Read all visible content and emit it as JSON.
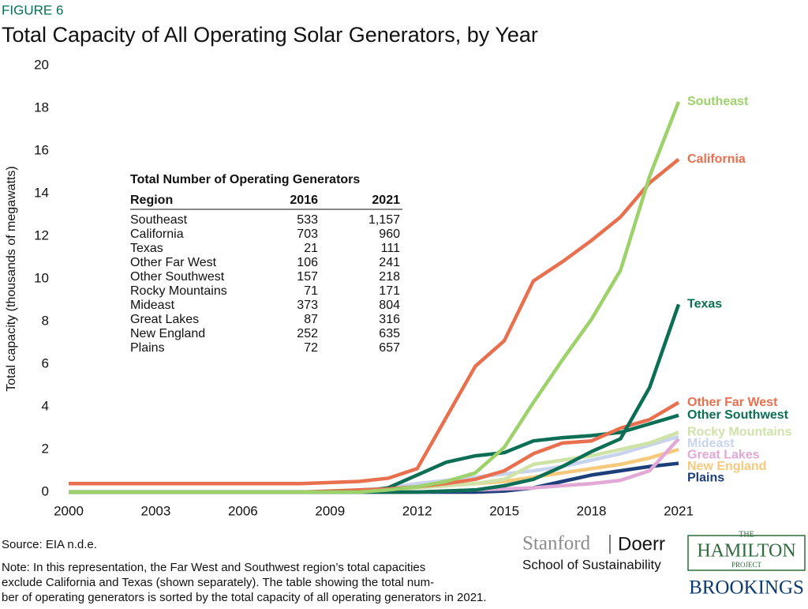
{
  "figure_label": "FIGURE 6",
  "chart_data": {
    "type": "line",
    "title": "Total Capacity of All Operating Solar Generators, by Year",
    "y_label": "Total capacity (thousands of megawatts)",
    "x": [
      2000,
      2001,
      2002,
      2003,
      2004,
      2005,
      2006,
      2007,
      2008,
      2009,
      2010,
      2011,
      2012,
      2013,
      2014,
      2015,
      2016,
      2017,
      2018,
      2019,
      2020,
      2021
    ],
    "xlim": [
      2000,
      2021
    ],
    "xticks": [
      2000,
      2003,
      2006,
      2009,
      2012,
      2015,
      2018,
      2021
    ],
    "ylim": [
      0,
      20
    ],
    "yticks": [
      0,
      2,
      4,
      6,
      8,
      10,
      12,
      14,
      16,
      18,
      20
    ],
    "grid": false,
    "series": [
      {
        "name": "Southeast",
        "color": "#9dd16a",
        "values": [
          0,
          0,
          0,
          0,
          0,
          0,
          0,
          0,
          0,
          0,
          0,
          0.1,
          0.25,
          0.5,
          0.9,
          2.1,
          4.2,
          6.2,
          8.1,
          10.4,
          14.8,
          18.3
        ]
      },
      {
        "name": "California",
        "color": "#e8704f",
        "values": [
          0.4,
          0.4,
          0.4,
          0.4,
          0.4,
          0.4,
          0.4,
          0.4,
          0.4,
          0.45,
          0.5,
          0.65,
          1.1,
          3.5,
          5.9,
          7.1,
          9.9,
          10.8,
          11.8,
          12.9,
          14.5,
          15.6
        ]
      },
      {
        "name": "Texas",
        "color": "#0b6e55",
        "values": [
          0,
          0,
          0,
          0,
          0,
          0,
          0,
          0,
          0,
          0,
          0,
          0,
          0,
          0.05,
          0.1,
          0.3,
          0.6,
          1.2,
          1.9,
          2.5,
          4.9,
          8.8
        ]
      },
      {
        "name": "Other Far West",
        "color": "#e8704f",
        "values": [
          0,
          0,
          0,
          0,
          0,
          0,
          0,
          0,
          0,
          0.05,
          0.1,
          0.15,
          0.25,
          0.4,
          0.6,
          1.0,
          1.8,
          2.3,
          2.4,
          3.0,
          3.4,
          4.2
        ]
      },
      {
        "name": "Other Southwest",
        "color": "#0b6e55",
        "values": [
          0,
          0,
          0,
          0,
          0,
          0,
          0,
          0,
          0,
          0,
          0,
          0.2,
          0.8,
          1.4,
          1.7,
          1.85,
          2.4,
          2.55,
          2.65,
          2.8,
          3.2,
          3.6
        ]
      },
      {
        "name": "Rocky Mountains",
        "color": "#cfe3a8",
        "values": [
          0,
          0,
          0,
          0,
          0,
          0,
          0,
          0,
          0,
          0,
          0,
          0.1,
          0.2,
          0.3,
          0.4,
          0.6,
          1.3,
          1.5,
          1.7,
          2.0,
          2.3,
          2.8
        ]
      },
      {
        "name": "Mideast",
        "color": "#c8d4ee",
        "values": [
          0,
          0,
          0,
          0,
          0,
          0,
          0,
          0,
          0,
          0,
          0.1,
          0.2,
          0.4,
          0.55,
          0.7,
          0.85,
          1.0,
          1.2,
          1.5,
          1.8,
          2.2,
          2.6
        ]
      },
      {
        "name": "Great Lakes",
        "color": "#e2a8d6",
        "values": [
          0,
          0,
          0,
          0,
          0,
          0,
          0,
          0,
          0,
          0,
          0,
          0,
          0,
          0.05,
          0.1,
          0.15,
          0.2,
          0.3,
          0.4,
          0.55,
          1.0,
          2.5
        ]
      },
      {
        "name": "New England",
        "color": "#f7c97a",
        "values": [
          0,
          0,
          0,
          0,
          0,
          0,
          0,
          0,
          0,
          0,
          0.05,
          0.1,
          0.2,
          0.3,
          0.4,
          0.5,
          0.7,
          0.9,
          1.1,
          1.3,
          1.6,
          2.0
        ]
      },
      {
        "name": "Plains",
        "color": "#1c3f7a",
        "values": [
          0,
          0,
          0,
          0,
          0,
          0,
          0,
          0,
          0,
          0,
          0,
          0,
          0,
          0,
          0,
          0.05,
          0.2,
          0.5,
          0.8,
          1.0,
          1.2,
          1.35
        ]
      }
    ],
    "table": {
      "title": "Total Number of Operating Generators",
      "columns": [
        "Region",
        "2016",
        "2021"
      ],
      "rows": [
        [
          "Southeast",
          533,
          "1,157"
        ],
        [
          "California",
          703,
          960
        ],
        [
          "Texas",
          21,
          111
        ],
        [
          "Other Far West",
          106,
          241
        ],
        [
          "Other Southwest",
          157,
          218
        ],
        [
          "Rocky Mountains",
          71,
          171
        ],
        [
          "Mideast",
          373,
          804
        ],
        [
          "Great Lakes",
          87,
          316
        ],
        [
          "New England",
          252,
          635
        ],
        [
          "Plains",
          72,
          657
        ]
      ]
    }
  },
  "source": "Source: EIA n.d.e.",
  "note_lines": [
    "Note: In this representation, the Far West and Southwest region’s total capacities",
    "exclude California and Texas (shown separately). The table showing the total num-",
    "ber of operating generators is sorted by the total capacity of all operating generators in 2021."
  ],
  "logos": {
    "stanford": "Stanford",
    "doerr": "Doerr",
    "school": "School of Sustainability",
    "hamilton_the": "THE",
    "hamilton": "HAMILTON",
    "hamilton_project": "PROJECT",
    "brookings": "BROOKINGS"
  }
}
